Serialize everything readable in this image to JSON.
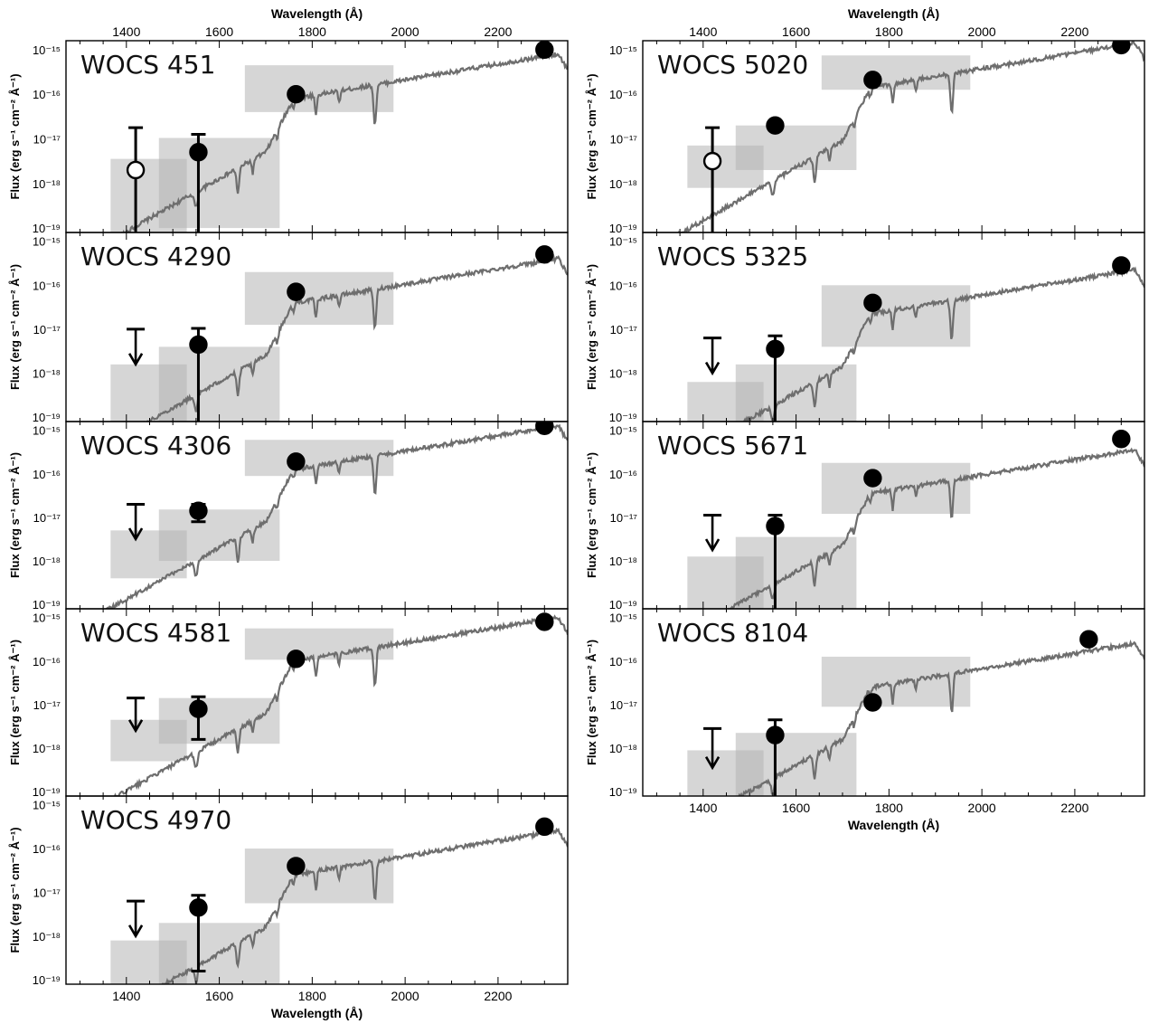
{
  "figure": {
    "x_axis_label": "Wavelength (Å)",
    "y_axis_label": "Flux (erg s⁻¹ cm⁻² Å⁻¹)",
    "colors": {
      "spectrum": "#6e6e6e",
      "box": "#b4b4b4",
      "point": "#000000"
    }
  },
  "chart_data": [
    {
      "type": "scatter",
      "title": "WOCS 451",
      "xlim": [
        1270,
        2350
      ],
      "ylim_log10": [
        -19.1,
        -14.8
      ],
      "x_ticks": [
        1400,
        1600,
        1800,
        2000,
        2200
      ],
      "y_ticks": [
        "10⁻¹⁵",
        "10⁻¹⁶",
        "10⁻¹⁷",
        "10⁻¹⁸",
        "10⁻¹⁹"
      ],
      "bands": [
        {
          "x": [
            1366,
            1530
          ],
          "log_flux": [
            -19.1,
            -17.45
          ]
        },
        {
          "x": [
            1470,
            1730
          ],
          "log_flux": [
            -19.0,
            -16.98
          ]
        },
        {
          "x": [
            1655,
            1975
          ],
          "log_flux": [
            -16.4,
            -15.35
          ]
        }
      ],
      "points": [
        {
          "x": 1420,
          "log_flux": -17.7,
          "err_low": -19.1,
          "err_high": -16.75,
          "open": true
        },
        {
          "x": 1555,
          "log_flux": -17.3,
          "err_low": -19.1,
          "err_high": -16.9
        },
        {
          "x": 1765,
          "log_flux": -16.0
        },
        {
          "x": 2300,
          "log_flux": -15.0
        }
      ],
      "upper_limits": [],
      "spectrum_shift": 0.0
    },
    {
      "type": "scatter",
      "title": "WOCS 4290",
      "xlim": [
        1270,
        2350
      ],
      "ylim_log10": [
        -19.1,
        -14.8
      ],
      "x_ticks": [
        1400,
        1600,
        1800,
        2000,
        2200
      ],
      "y_ticks": [
        "10⁻¹⁵",
        "10⁻¹⁶",
        "10⁻¹⁷",
        "10⁻¹⁸",
        "10⁻¹⁹"
      ],
      "bands": [
        {
          "x": [
            1366,
            1530
          ],
          "log_flux": [
            -19.1,
            -17.8
          ]
        },
        {
          "x": [
            1470,
            1730
          ],
          "log_flux": [
            -19.1,
            -17.4
          ]
        },
        {
          "x": [
            1655,
            1975
          ],
          "log_flux": [
            -16.9,
            -15.7
          ]
        }
      ],
      "points": [
        {
          "x": 1555,
          "log_flux": -17.35,
          "err_low": -19.1,
          "err_high": -16.98
        },
        {
          "x": 1765,
          "log_flux": -16.15
        },
        {
          "x": 2300,
          "log_flux": -15.3
        }
      ],
      "upper_limits": [
        {
          "x": 1420,
          "log_flux": -17.0,
          "arrow_to": -17.8
        }
      ],
      "spectrum_shift": -0.3
    },
    {
      "type": "scatter",
      "title": "WOCS 4306",
      "xlim": [
        1270,
        2350
      ],
      "ylim_log10": [
        -19.1,
        -14.8
      ],
      "x_ticks": [
        1400,
        1600,
        1800,
        2000,
        2200
      ],
      "y_ticks": [
        "10⁻¹⁵",
        "10⁻¹⁶",
        "10⁻¹⁷",
        "10⁻¹⁸",
        "10⁻¹⁹"
      ],
      "bands": [
        {
          "x": [
            1366,
            1530
          ],
          "log_flux": [
            -18.4,
            -17.3
          ]
        },
        {
          "x": [
            1470,
            1730
          ],
          "log_flux": [
            -18.0,
            -16.82
          ]
        },
        {
          "x": [
            1655,
            1975
          ],
          "log_flux": [
            -16.05,
            -15.22
          ]
        }
      ],
      "points": [
        {
          "x": 1555,
          "log_flux": -16.85,
          "err_low": -17.1,
          "err_high": -16.7
        },
        {
          "x": 1765,
          "log_flux": -15.72
        },
        {
          "x": 2300,
          "log_flux": -14.9
        }
      ],
      "upper_limits": [
        {
          "x": 1420,
          "log_flux": -16.7,
          "arrow_to": -17.5
        }
      ],
      "spectrum_shift": 0.2
    },
    {
      "type": "scatter",
      "title": "WOCS 4581",
      "xlim": [
        1270,
        2350
      ],
      "ylim_log10": [
        -19.1,
        -14.8
      ],
      "x_ticks": [
        1400,
        1600,
        1800,
        2000,
        2200
      ],
      "y_ticks": [
        "10⁻¹⁵",
        "10⁻¹⁶",
        "10⁻¹⁷",
        "10⁻¹⁸",
        "10⁻¹⁹"
      ],
      "bands": [
        {
          "x": [
            1366,
            1530
          ],
          "log_flux": [
            -18.3,
            -17.35
          ]
        },
        {
          "x": [
            1470,
            1730
          ],
          "log_flux": [
            -17.9,
            -16.85
          ]
        },
        {
          "x": [
            1655,
            1975
          ],
          "log_flux": [
            -15.97,
            -15.25
          ]
        }
      ],
      "points": [
        {
          "x": 1555,
          "log_flux": -17.1,
          "err_low": -17.8,
          "err_high": -16.82
        },
        {
          "x": 1765,
          "log_flux": -15.95
        },
        {
          "x": 2300,
          "log_flux": -15.1
        }
      ],
      "upper_limits": [
        {
          "x": 1420,
          "log_flux": -16.85,
          "arrow_to": -17.6
        }
      ],
      "spectrum_shift": 0.1
    },
    {
      "type": "scatter",
      "title": "WOCS 4970",
      "xlim": [
        1270,
        2350
      ],
      "ylim_log10": [
        -19.1,
        -14.8
      ],
      "x_ticks": [
        1400,
        1600,
        1800,
        2000,
        2200
      ],
      "y_ticks": [
        "10⁻¹⁵",
        "10⁻¹⁶",
        "10⁻¹⁷",
        "10⁻¹⁸",
        "10⁻¹⁹"
      ],
      "bands": [
        {
          "x": [
            1366,
            1530
          ],
          "log_flux": [
            -19.1,
            -18.1
          ]
        },
        {
          "x": [
            1470,
            1730
          ],
          "log_flux": [
            -19.1,
            -17.7
          ]
        },
        {
          "x": [
            1655,
            1975
          ],
          "log_flux": [
            -17.25,
            -16.0
          ]
        }
      ],
      "points": [
        {
          "x": 1555,
          "log_flux": -17.35,
          "err_low": -18.8,
          "err_high": -17.07
        },
        {
          "x": 1765,
          "log_flux": -16.4
        },
        {
          "x": 2300,
          "log_flux": -15.5
        }
      ],
      "upper_limits": [
        {
          "x": 1420,
          "log_flux": -17.2,
          "arrow_to": -18.0
        }
      ],
      "spectrum_shift": -0.5
    },
    {
      "type": "scatter",
      "title": "WOCS 5020",
      "xlim": [
        1270,
        2350
      ],
      "ylim_log10": [
        -19.1,
        -14.8
      ],
      "x_ticks": [
        1400,
        1600,
        1800,
        2000,
        2200
      ],
      "y_ticks": [
        "10⁻¹⁵",
        "10⁻¹⁶",
        "10⁻¹⁷",
        "10⁻¹⁸",
        "10⁻¹⁹"
      ],
      "bands": [
        {
          "x": [
            1366,
            1530
          ],
          "log_flux": [
            -18.1,
            -17.15
          ]
        },
        {
          "x": [
            1470,
            1730
          ],
          "log_flux": [
            -17.7,
            -16.7
          ]
        },
        {
          "x": [
            1655,
            1975
          ],
          "log_flux": [
            -15.9,
            -15.13
          ]
        }
      ],
      "points": [
        {
          "x": 1420,
          "log_flux": -17.5,
          "err_low": -19.1,
          "err_high": -16.75,
          "open": true
        },
        {
          "x": 1555,
          "log_flux": -16.7,
          "err_low": -16.8,
          "err_high": -16.65
        },
        {
          "x": 1765,
          "log_flux": -15.68
        },
        {
          "x": 2300,
          "log_flux": -14.9
        }
      ],
      "upper_limits": [],
      "spectrum_shift": 0.25
    },
    {
      "type": "scatter",
      "title": "WOCS 5325",
      "xlim": [
        1270,
        2350
      ],
      "ylim_log10": [
        -19.1,
        -14.8
      ],
      "x_ticks": [
        1400,
        1600,
        1800,
        2000,
        2200
      ],
      "y_ticks": [
        "10⁻¹⁵",
        "10⁻¹⁶",
        "10⁻¹⁷",
        "10⁻¹⁸",
        "10⁻¹⁹"
      ],
      "bands": [
        {
          "x": [
            1366,
            1530
          ],
          "log_flux": [
            -19.1,
            -18.2
          ]
        },
        {
          "x": [
            1470,
            1730
          ],
          "log_flux": [
            -19.1,
            -17.8
          ]
        },
        {
          "x": [
            1655,
            1975
          ],
          "log_flux": [
            -17.4,
            -16.0
          ]
        }
      ],
      "points": [
        {
          "x": 1555,
          "log_flux": -17.45,
          "err_low": -19.1,
          "err_high": -17.15
        },
        {
          "x": 1765,
          "log_flux": -16.4
        },
        {
          "x": 2300,
          "log_flux": -15.55
        }
      ],
      "upper_limits": [
        {
          "x": 1420,
          "log_flux": -17.2,
          "arrow_to": -18.0
        }
      ],
      "spectrum_shift": -0.55
    },
    {
      "type": "scatter",
      "title": "WOCS 5671",
      "xlim": [
        1270,
        2350
      ],
      "ylim_log10": [
        -19.1,
        -14.8
      ],
      "x_ticks": [
        1400,
        1600,
        1800,
        2000,
        2200
      ],
      "y_ticks": [
        "10⁻¹⁵",
        "10⁻¹⁶",
        "10⁻¹⁷",
        "10⁻¹⁸",
        "10⁻¹⁹"
      ],
      "bands": [
        {
          "x": [
            1366,
            1530
          ],
          "log_flux": [
            -19.1,
            -17.9
          ]
        },
        {
          "x": [
            1470,
            1730
          ],
          "log_flux": [
            -19.1,
            -17.45
          ]
        },
        {
          "x": [
            1655,
            1975
          ],
          "log_flux": [
            -16.92,
            -15.75
          ]
        }
      ],
      "points": [
        {
          "x": 1555,
          "log_flux": -17.2,
          "err_low": -19.1,
          "err_high": -16.95
        },
        {
          "x": 1765,
          "log_flux": -16.1
        },
        {
          "x": 2300,
          "log_flux": -15.2
        }
      ],
      "upper_limits": [
        {
          "x": 1420,
          "log_flux": -16.95,
          "arrow_to": -17.75
        }
      ],
      "spectrum_shift": -0.35
    },
    {
      "type": "scatter",
      "title": "WOCS 8104",
      "xlim": [
        1270,
        2350
      ],
      "ylim_log10": [
        -19.1,
        -14.8
      ],
      "x_ticks": [
        1400,
        1600,
        1800,
        2000,
        2200
      ],
      "x_tick_labels_bottom": true,
      "y_ticks": [
        "10⁻¹⁵",
        "10⁻¹⁶",
        "10⁻¹⁷",
        "10⁻¹⁸",
        "10⁻¹⁹"
      ],
      "bands": [
        {
          "x": [
            1366,
            1530
          ],
          "log_flux": [
            -19.1,
            -18.05
          ]
        },
        {
          "x": [
            1470,
            1730
          ],
          "log_flux": [
            -19.1,
            -17.65
          ]
        },
        {
          "x": [
            1655,
            1975
          ],
          "log_flux": [
            -17.05,
            -15.9
          ]
        }
      ],
      "points": [
        {
          "x": 1555,
          "log_flux": -17.7,
          "err_low": -19.1,
          "err_high": -17.35
        },
        {
          "x": 1765,
          "log_flux": -16.95
        },
        {
          "x": 2230,
          "log_flux": -15.5
        }
      ],
      "upper_limits": [
        {
          "x": 1420,
          "log_flux": -17.55,
          "arrow_to": -18.45
        }
      ],
      "spectrum_shift": -0.5
    }
  ]
}
